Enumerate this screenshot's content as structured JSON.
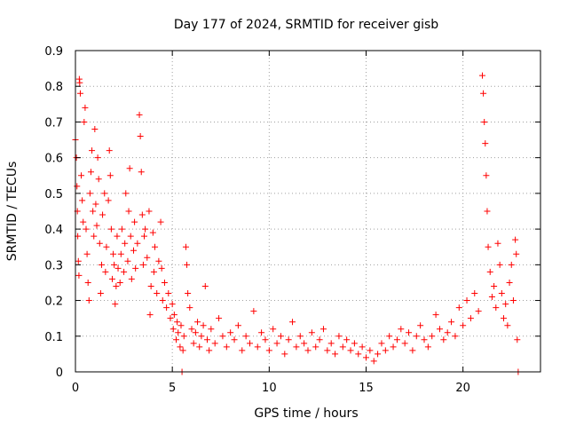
{
  "chart_data": {
    "type": "scatter",
    "title": "Day 177 of 2024, SRMTID for receiver gisb",
    "xlabel": "GPS time / hours",
    "ylabel": "SRMTID / TECUs",
    "xlim": [
      0,
      24
    ],
    "ylim": [
      0,
      0.9
    ],
    "xticks": [
      0,
      5,
      10,
      15,
      20
    ],
    "xtick_labels": [
      "0",
      "5",
      "10",
      "15",
      "20"
    ],
    "yticks": [
      0,
      0.1,
      0.2,
      0.3,
      0.4,
      0.5,
      0.6,
      0.7,
      0.8,
      0.9
    ],
    "ytick_labels": [
      "0",
      "0.1",
      "0.2",
      "0.3",
      "0.4",
      "0.5",
      "0.6",
      "0.7",
      "0.8",
      "0.9"
    ],
    "grid": true,
    "marker": "+",
    "color": "#ff0000",
    "series": [
      {
        "name": "SRMTID",
        "points": [
          [
            0.0,
            0.65
          ],
          [
            0.05,
            0.6
          ],
          [
            0.08,
            0.52
          ],
          [
            0.1,
            0.45
          ],
          [
            0.12,
            0.38
          ],
          [
            0.15,
            0.31
          ],
          [
            0.18,
            0.27
          ],
          [
            0.2,
            0.82
          ],
          [
            0.22,
            0.81
          ],
          [
            0.25,
            0.78
          ],
          [
            0.3,
            0.55
          ],
          [
            0.35,
            0.48
          ],
          [
            0.4,
            0.42
          ],
          [
            0.45,
            0.7
          ],
          [
            0.5,
            0.74
          ],
          [
            0.55,
            0.4
          ],
          [
            0.6,
            0.33
          ],
          [
            0.65,
            0.25
          ],
          [
            0.7,
            0.2
          ],
          [
            0.75,
            0.5
          ],
          [
            0.8,
            0.56
          ],
          [
            0.85,
            0.62
          ],
          [
            0.9,
            0.45
          ],
          [
            0.95,
            0.38
          ],
          [
            1.0,
            0.68
          ],
          [
            1.05,
            0.47
          ],
          [
            1.1,
            0.41
          ],
          [
            1.15,
            0.6
          ],
          [
            1.2,
            0.54
          ],
          [
            1.25,
            0.36
          ],
          [
            1.3,
            0.22
          ],
          [
            1.35,
            0.3
          ],
          [
            1.4,
            0.44
          ],
          [
            1.5,
            0.5
          ],
          [
            1.55,
            0.28
          ],
          [
            1.6,
            0.35
          ],
          [
            1.7,
            0.48
          ],
          [
            1.75,
            0.62
          ],
          [
            1.8,
            0.55
          ],
          [
            1.85,
            0.4
          ],
          [
            1.9,
            0.26
          ],
          [
            1.95,
            0.33
          ],
          [
            2.0,
            0.3
          ],
          [
            2.05,
            0.19
          ],
          [
            2.1,
            0.24
          ],
          [
            2.15,
            0.38
          ],
          [
            2.2,
            0.29
          ],
          [
            2.3,
            0.25
          ],
          [
            2.35,
            0.33
          ],
          [
            2.4,
            0.4
          ],
          [
            2.5,
            0.28
          ],
          [
            2.55,
            0.36
          ],
          [
            2.6,
            0.5
          ],
          [
            2.7,
            0.31
          ],
          [
            2.75,
            0.45
          ],
          [
            2.8,
            0.57
          ],
          [
            2.85,
            0.38
          ],
          [
            2.9,
            0.26
          ],
          [
            3.0,
            0.34
          ],
          [
            3.05,
            0.42
          ],
          [
            3.1,
            0.29
          ],
          [
            3.2,
            0.36
          ],
          [
            3.3,
            0.72
          ],
          [
            3.35,
            0.66
          ],
          [
            3.4,
            0.56
          ],
          [
            3.45,
            0.44
          ],
          [
            3.5,
            0.3
          ],
          [
            3.55,
            0.38
          ],
          [
            3.6,
            0.4
          ],
          [
            3.7,
            0.32
          ],
          [
            3.8,
            0.45
          ],
          [
            3.85,
            0.16
          ],
          [
            3.9,
            0.24
          ],
          [
            4.0,
            0.39
          ],
          [
            4.05,
            0.28
          ],
          [
            4.1,
            0.35
          ],
          [
            4.2,
            0.22
          ],
          [
            4.3,
            0.31
          ],
          [
            4.4,
            0.42
          ],
          [
            4.45,
            0.29
          ],
          [
            4.5,
            0.2
          ],
          [
            4.6,
            0.25
          ],
          [
            4.7,
            0.18
          ],
          [
            4.8,
            0.22
          ],
          [
            4.9,
            0.15
          ],
          [
            5.0,
            0.19
          ],
          [
            5.05,
            0.12
          ],
          [
            5.1,
            0.16
          ],
          [
            5.2,
            0.09
          ],
          [
            5.25,
            0.14
          ],
          [
            5.3,
            0.11
          ],
          [
            5.4,
            0.07
          ],
          [
            5.45,
            0.13
          ],
          [
            5.5,
            0.0
          ],
          [
            5.55,
            0.06
          ],
          [
            5.6,
            0.1
          ],
          [
            5.7,
            0.35
          ],
          [
            5.75,
            0.3
          ],
          [
            5.8,
            0.22
          ],
          [
            5.9,
            0.18
          ],
          [
            6.0,
            0.12
          ],
          [
            6.1,
            0.08
          ],
          [
            6.2,
            0.11
          ],
          [
            6.3,
            0.14
          ],
          [
            6.4,
            0.07
          ],
          [
            6.5,
            0.1
          ],
          [
            6.6,
            0.13
          ],
          [
            6.7,
            0.24
          ],
          [
            6.8,
            0.09
          ],
          [
            6.9,
            0.06
          ],
          [
            7.0,
            0.12
          ],
          [
            7.2,
            0.08
          ],
          [
            7.4,
            0.15
          ],
          [
            7.6,
            0.1
          ],
          [
            7.8,
            0.07
          ],
          [
            8.0,
            0.11
          ],
          [
            8.2,
            0.09
          ],
          [
            8.4,
            0.13
          ],
          [
            8.6,
            0.06
          ],
          [
            8.8,
            0.1
          ],
          [
            9.0,
            0.08
          ],
          [
            9.2,
            0.17
          ],
          [
            9.4,
            0.07
          ],
          [
            9.6,
            0.11
          ],
          [
            9.8,
            0.09
          ],
          [
            10.0,
            0.06
          ],
          [
            10.2,
            0.12
          ],
          [
            10.4,
            0.08
          ],
          [
            10.6,
            0.1
          ],
          [
            10.8,
            0.05
          ],
          [
            11.0,
            0.09
          ],
          [
            11.2,
            0.14
          ],
          [
            11.4,
            0.07
          ],
          [
            11.6,
            0.1
          ],
          [
            11.8,
            0.08
          ],
          [
            12.0,
            0.06
          ],
          [
            12.2,
            0.11
          ],
          [
            12.4,
            0.07
          ],
          [
            12.6,
            0.09
          ],
          [
            12.8,
            0.12
          ],
          [
            13.0,
            0.06
          ],
          [
            13.2,
            0.08
          ],
          [
            13.4,
            0.05
          ],
          [
            13.6,
            0.1
          ],
          [
            13.8,
            0.07
          ],
          [
            14.0,
            0.09
          ],
          [
            14.2,
            0.06
          ],
          [
            14.4,
            0.08
          ],
          [
            14.6,
            0.05
          ],
          [
            14.8,
            0.07
          ],
          [
            15.0,
            0.04
          ],
          [
            15.2,
            0.06
          ],
          [
            15.4,
            0.03
          ],
          [
            15.6,
            0.05
          ],
          [
            15.8,
            0.08
          ],
          [
            16.0,
            0.06
          ],
          [
            16.2,
            0.1
          ],
          [
            16.4,
            0.07
          ],
          [
            16.6,
            0.09
          ],
          [
            16.8,
            0.12
          ],
          [
            17.0,
            0.08
          ],
          [
            17.2,
            0.11
          ],
          [
            17.4,
            0.06
          ],
          [
            17.6,
            0.1
          ],
          [
            17.8,
            0.13
          ],
          [
            18.0,
            0.09
          ],
          [
            18.2,
            0.07
          ],
          [
            18.4,
            0.1
          ],
          [
            18.6,
            0.16
          ],
          [
            18.8,
            0.12
          ],
          [
            19.0,
            0.09
          ],
          [
            19.2,
            0.11
          ],
          [
            19.4,
            0.14
          ],
          [
            19.6,
            0.1
          ],
          [
            19.8,
            0.18
          ],
          [
            20.0,
            0.13
          ],
          [
            20.2,
            0.2
          ],
          [
            20.4,
            0.15
          ],
          [
            20.6,
            0.22
          ],
          [
            20.8,
            0.17
          ],
          [
            21.0,
            0.83
          ],
          [
            21.05,
            0.78
          ],
          [
            21.1,
            0.7
          ],
          [
            21.15,
            0.64
          ],
          [
            21.2,
            0.55
          ],
          [
            21.25,
            0.45
          ],
          [
            21.3,
            0.35
          ],
          [
            21.4,
            0.28
          ],
          [
            21.5,
            0.21
          ],
          [
            21.6,
            0.24
          ],
          [
            21.7,
            0.18
          ],
          [
            21.8,
            0.36
          ],
          [
            21.9,
            0.3
          ],
          [
            22.0,
            0.22
          ],
          [
            22.1,
            0.15
          ],
          [
            22.2,
            0.19
          ],
          [
            22.3,
            0.13
          ],
          [
            22.4,
            0.25
          ],
          [
            22.5,
            0.3
          ],
          [
            22.6,
            0.2
          ],
          [
            22.7,
            0.37
          ],
          [
            22.75,
            0.33
          ],
          [
            22.8,
            0.09
          ],
          [
            22.85,
            0.0
          ]
        ]
      }
    ]
  }
}
